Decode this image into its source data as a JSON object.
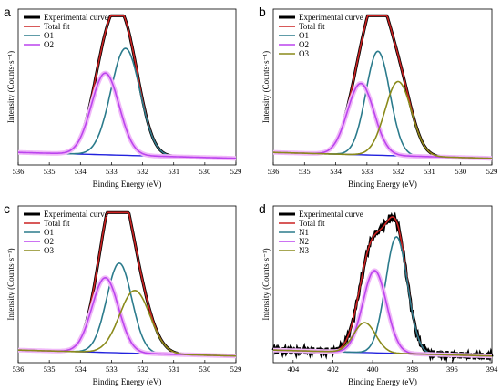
{
  "chart_data": [
    {
      "type": "line",
      "panel_label": "a",
      "xlabel": "Binding Energy (eV)",
      "ylabel": "Intensity (Counts·s⁻¹)",
      "xlim": [
        536,
        529
      ],
      "x_ticks": [
        "536",
        "535",
        "534",
        "533",
        "532",
        "531",
        "530",
        "529"
      ],
      "legend_position": "top-left",
      "series": [
        {
          "name": "Experimental curve",
          "color": "#000000",
          "kind": "envelope",
          "peak_x": 532.8,
          "peak_y": 0.97,
          "tail_right": 0.04,
          "tail_left": 0.04
        },
        {
          "name": "Total fit",
          "color": "#cc2222",
          "kind": "envelope",
          "peak_x": 532.8,
          "peak_y": 0.96,
          "tail_right": 0.04,
          "tail_left": 0.04
        },
        {
          "name": "O1",
          "color": "#2b7b8c",
          "kind": "peak",
          "center": 532.55,
          "height": 0.72,
          "fwhm": 1.1
        },
        {
          "name": "O2",
          "color": "#bb44ee",
          "kind": "peak",
          "center": 533.2,
          "height": 0.55,
          "fwhm": 1.05
        }
      ]
    },
    {
      "type": "line",
      "panel_label": "b",
      "xlabel": "Binding Energy (eV)",
      "ylabel": "Intensity (Counts·s⁻¹)",
      "xlim": [
        536,
        529
      ],
      "x_ticks": [
        "536",
        "535",
        "534",
        "533",
        "532",
        "531",
        "530",
        "529"
      ],
      "legend_position": "top-left",
      "series": [
        {
          "name": "Experimental curve",
          "color": "#000000",
          "kind": "envelope",
          "peak_x": 532.65,
          "peak_y": 0.95,
          "tail_right": 0.04,
          "tail_left": 0.04
        },
        {
          "name": "Total fit",
          "color": "#cc2222",
          "kind": "envelope",
          "peak_x": 532.65,
          "peak_y": 0.94,
          "tail_right": 0.04,
          "tail_left": 0.04
        },
        {
          "name": "O1",
          "color": "#2b7b8c",
          "kind": "peak",
          "center": 532.65,
          "height": 0.7,
          "fwhm": 0.9
        },
        {
          "name": "O2",
          "color": "#bb44ee",
          "kind": "peak",
          "center": 533.2,
          "height": 0.48,
          "fwhm": 1.0
        },
        {
          "name": "O3",
          "color": "#8a8a1a",
          "kind": "peak",
          "center": 532.0,
          "height": 0.5,
          "fwhm": 1.0
        }
      ]
    },
    {
      "type": "line",
      "panel_label": "c",
      "xlabel": "Binding Energy (eV)",
      "ylabel": "Intensity (Counts·s⁻¹)",
      "xlim": [
        536,
        529
      ],
      "x_ticks": [
        "536",
        "535",
        "534",
        "533",
        "532",
        "531",
        "530",
        "529"
      ],
      "legend_position": "top-left",
      "series": [
        {
          "name": "Experimental curve",
          "color": "#000000",
          "kind": "envelope",
          "peak_x": 532.75,
          "peak_y": 0.95,
          "tail_right": 0.05,
          "tail_left": 0.05
        },
        {
          "name": "Total fit",
          "color": "#cc2222",
          "kind": "envelope",
          "peak_x": 532.75,
          "peak_y": 0.94,
          "tail_right": 0.05,
          "tail_left": 0.05
        },
        {
          "name": "O1",
          "color": "#2b7b8c",
          "kind": "peak",
          "center": 532.75,
          "height": 0.6,
          "fwhm": 0.95
        },
        {
          "name": "O2",
          "color": "#bb44ee",
          "kind": "peak",
          "center": 533.2,
          "height": 0.5,
          "fwhm": 1.0
        },
        {
          "name": "O3",
          "color": "#8a8a1a",
          "kind": "peak",
          "center": 532.25,
          "height": 0.42,
          "fwhm": 1.15
        }
      ]
    },
    {
      "type": "line",
      "panel_label": "d",
      "xlabel": "Binding Energy (eV)",
      "ylabel": "Intensity (Counts·s⁻¹)",
      "xlim": [
        405,
        394
      ],
      "x_ticks": [
        "404",
        "402",
        "400",
        "398",
        "396",
        "394"
      ],
      "legend_position": "top-left",
      "series": [
        {
          "name": "Experimental curve",
          "color": "#000000",
          "kind": "envelope",
          "peak_x": 398.8,
          "peak_y": 0.92,
          "tail_right": 0.03,
          "tail_left": 0.08
        },
        {
          "name": "Total fit",
          "color": "#cc2222",
          "kind": "envelope",
          "peak_x": 398.8,
          "peak_y": 0.91,
          "tail_right": 0.03,
          "tail_left": 0.08
        },
        {
          "name": "N1",
          "color": "#2b7b8c",
          "kind": "peak",
          "center": 398.8,
          "height": 0.78,
          "fwhm": 1.3
        },
        {
          "name": "N2",
          "color": "#bb44ee",
          "kind": "peak",
          "center": 399.9,
          "height": 0.55,
          "fwhm": 1.4
        },
        {
          "name": "N3",
          "color": "#8a8a1a",
          "kind": "peak",
          "center": 400.4,
          "height": 0.2,
          "fwhm": 1.3
        }
      ]
    }
  ]
}
